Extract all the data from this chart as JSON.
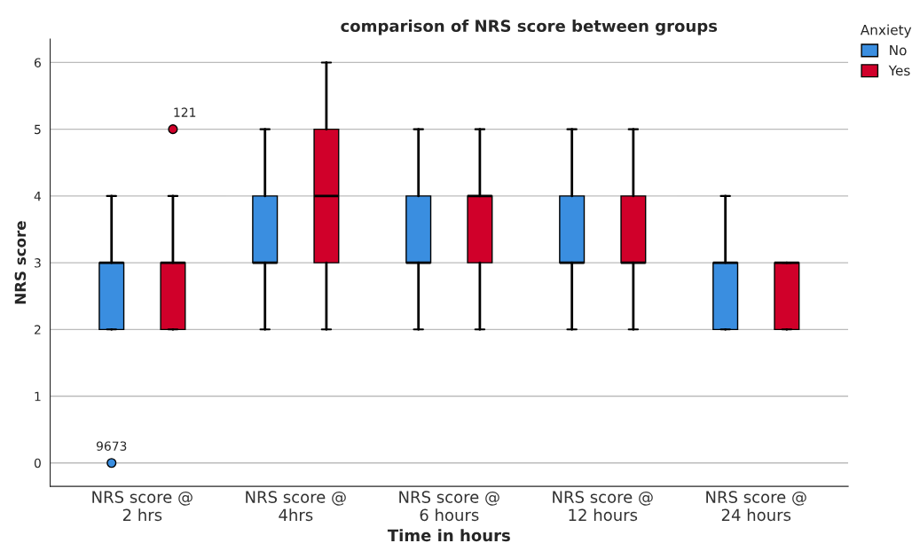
{
  "chart_data": {
    "type": "box",
    "title": "comparison of NRS score between groups",
    "xlabel": "Time in hours",
    "ylabel": "NRS score",
    "legend_title": "Anxiety",
    "categories": [
      "NRS score @\n2 hrs",
      "NRS score @\n4hrs",
      "NRS score @\n6 hours",
      "NRS score @\n12 hours",
      "NRS score @\n24 hours"
    ],
    "series": [
      {
        "name": "No",
        "color": "#3a8ee0",
        "boxes": [
          {
            "low": 2,
            "q1": 2,
            "median": 3,
            "q3": 3,
            "high": 4,
            "outliers": [
              0
            ]
          },
          {
            "low": 2,
            "q1": 3,
            "median": 3,
            "q3": 4,
            "high": 5
          },
          {
            "low": 2,
            "q1": 3,
            "median": 3,
            "q3": 4,
            "high": 5
          },
          {
            "low": 2,
            "q1": 3,
            "median": 3,
            "q3": 4,
            "high": 5
          },
          {
            "low": 2,
            "q1": 2,
            "median": 3,
            "q3": 3,
            "high": 4
          }
        ]
      },
      {
        "name": "Yes",
        "color": "#d0002a",
        "boxes": [
          {
            "low": 2,
            "q1": 2,
            "median": 3,
            "q3": 3,
            "high": 4,
            "outliers": [
              5
            ]
          },
          {
            "low": 2,
            "q1": 3,
            "median": 4,
            "q3": 5,
            "high": 6
          },
          {
            "low": 2,
            "q1": 3,
            "median": 4,
            "q3": 4,
            "high": 5
          },
          {
            "low": 2,
            "q1": 3,
            "median": 3,
            "q3": 4,
            "high": 5
          },
          {
            "low": 2,
            "q1": 2,
            "median": 3,
            "q3": 3,
            "high": 3
          }
        ]
      }
    ],
    "annotations": [
      "9673",
      "121"
    ],
    "ylim": [
      -0.35,
      6.35
    ],
    "yticks": [
      0,
      1,
      2,
      3,
      4,
      5,
      6
    ],
    "grid": "y",
    "legend": "top right"
  }
}
